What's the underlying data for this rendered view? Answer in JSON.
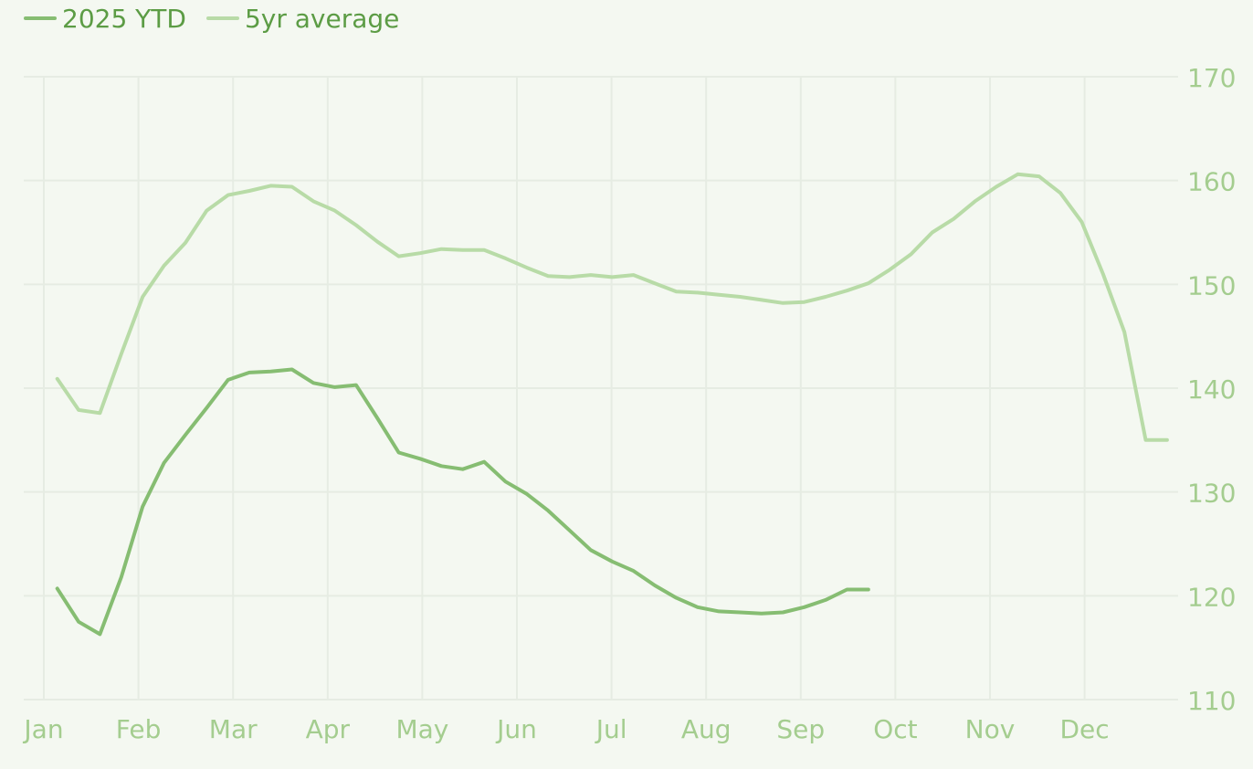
{
  "colors": {
    "background": "#f4f8f1",
    "grid": "#e6ece3",
    "axis_text": "#a4cd8f",
    "legend_text": "#5c9c45",
    "series_2025": "#86bd72",
    "series_5yr": "#b8dba7"
  },
  "legend": {
    "series_2025_label": "2025 YTD",
    "series_5yr_label": "5yr average"
  },
  "chart_data": {
    "type": "line",
    "x_tick_labels": [
      "Jan",
      "Feb",
      "Mar",
      "Apr",
      "May",
      "Jun",
      "Jul",
      "Aug",
      "Sep",
      "Oct",
      "Nov",
      "Dec"
    ],
    "y_ticks": [
      110,
      120,
      130,
      140,
      150,
      160,
      170
    ],
    "ylim": [
      110,
      170
    ],
    "xlim": [
      0,
      12.48
    ],
    "grid": true,
    "legend_position": "top-left",
    "y_axis_position": "right",
    "series": [
      {
        "name": "2025 YTD",
        "x": [
          0.142,
          0.368,
          0.593,
          0.819,
          1.044,
          1.27,
          1.496,
          1.721,
          1.947,
          2.172,
          2.398,
          2.623,
          2.849,
          3.075,
          3.3,
          3.526,
          3.751,
          3.977,
          4.202,
          4.428,
          4.654,
          4.879,
          5.105,
          5.33,
          5.556,
          5.781,
          6.007,
          6.233,
          6.458,
          6.684,
          6.909,
          7.135,
          7.36,
          7.586,
          7.812,
          8.037,
          8.263,
          8.488,
          8.714
        ],
        "y": [
          120.7,
          117.5,
          116.3,
          121.8,
          128.6,
          132.8,
          135.5,
          138.1,
          140.8,
          141.5,
          141.6,
          141.8,
          140.5,
          140.1,
          140.3,
          137.1,
          133.8,
          133.2,
          132.5,
          132.2,
          132.9,
          131.0,
          129.8,
          128.2,
          126.3,
          124.4,
          123.3,
          122.4,
          121.0,
          119.8,
          118.9,
          118.5,
          118.4,
          118.3,
          118.4,
          118.9,
          119.6,
          120.6,
          120.6
        ]
      },
      {
        "name": "5yr average",
        "x": [
          0.142,
          0.368,
          0.593,
          0.819,
          1.044,
          1.27,
          1.496,
          1.721,
          1.947,
          2.172,
          2.398,
          2.623,
          2.849,
          3.075,
          3.3,
          3.526,
          3.751,
          3.977,
          4.202,
          4.428,
          4.654,
          4.879,
          5.105,
          5.33,
          5.556,
          5.781,
          6.007,
          6.233,
          6.458,
          6.684,
          6.909,
          7.135,
          7.36,
          7.586,
          7.812,
          8.037,
          8.263,
          8.488,
          8.714,
          8.939,
          9.165,
          9.39,
          9.616,
          9.842,
          10.067,
          10.293,
          10.518,
          10.744,
          10.97,
          11.195,
          11.421,
          11.646,
          11.872
        ],
        "y": [
          140.9,
          137.9,
          137.6,
          143.3,
          148.8,
          151.8,
          154.0,
          157.1,
          158.6,
          159.0,
          159.5,
          159.4,
          158.0,
          157.1,
          155.7,
          154.1,
          152.7,
          153.0,
          153.4,
          153.3,
          153.3,
          152.5,
          151.6,
          150.8,
          150.7,
          150.9,
          150.7,
          150.9,
          150.1,
          149.3,
          149.2,
          149.0,
          148.8,
          148.5,
          148.2,
          148.3,
          148.8,
          149.4,
          150.1,
          151.4,
          152.9,
          155.0,
          156.3,
          158.0,
          159.4,
          160.6,
          160.4,
          158.8,
          156.0,
          151.0,
          145.4,
          135.0,
          135.0
        ]
      }
    ]
  }
}
